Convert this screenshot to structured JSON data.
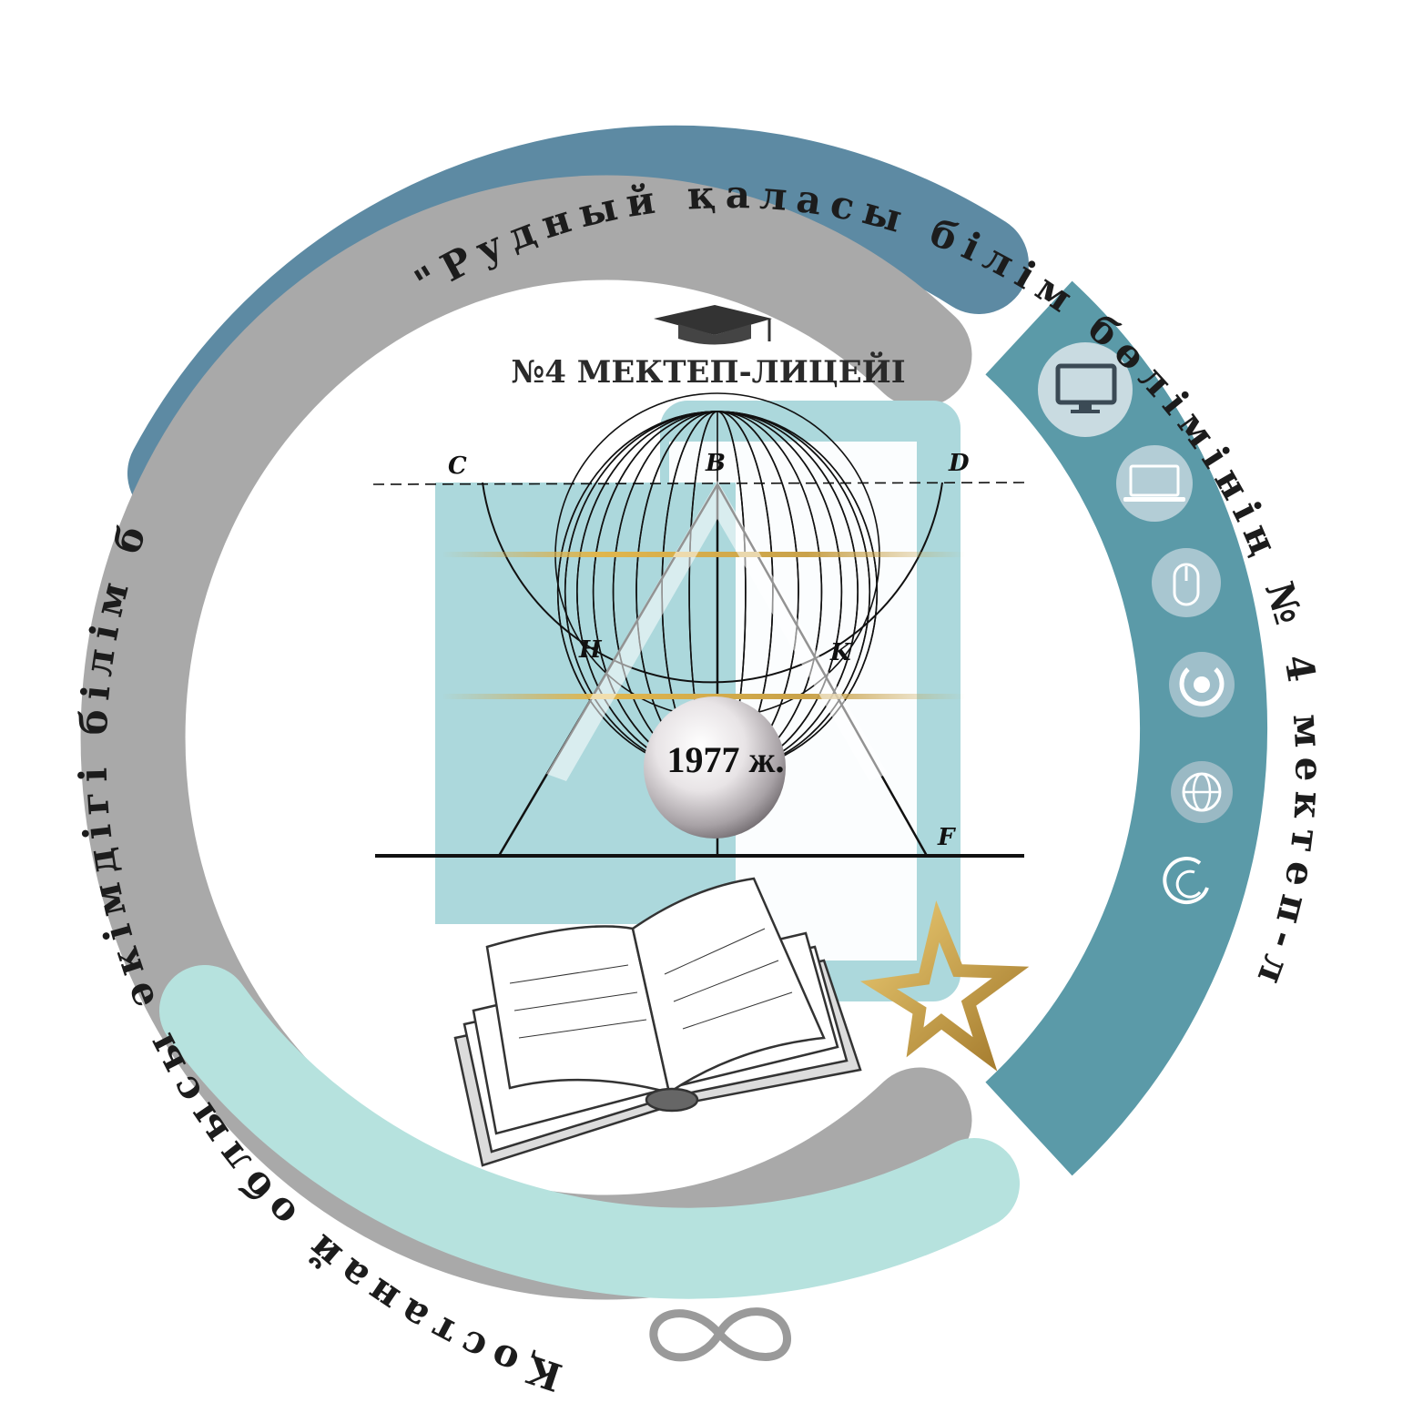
{
  "ring_top_text": "\"Рудный қаласы білім бөлімінің № 4 мектеп-лицейі\" КММ",
  "ring_left_text": "Қостанай облысы әкімдігі білім басқармасының",
  "title": "№4 МЕКТЕП-ЛИЦЕЙІ",
  "year": "1977 ж.",
  "geometry_labels": {
    "c": "C",
    "b": "B",
    "d": "D",
    "h": "H",
    "k": "K",
    "f": "F"
  },
  "icons": [
    "monitor-icon",
    "laptop-icon",
    "mouse-icon",
    "power-icon",
    "globe-icon",
    "loading-icon"
  ],
  "colors": {
    "dark_blue": "#5d8aa3",
    "teal_blue": "#5b9aa8",
    "gray": "#a9a9a9",
    "light_teal": "#b6e2de",
    "panel": "#acd8dc",
    "gold": "#c9a24a"
  }
}
